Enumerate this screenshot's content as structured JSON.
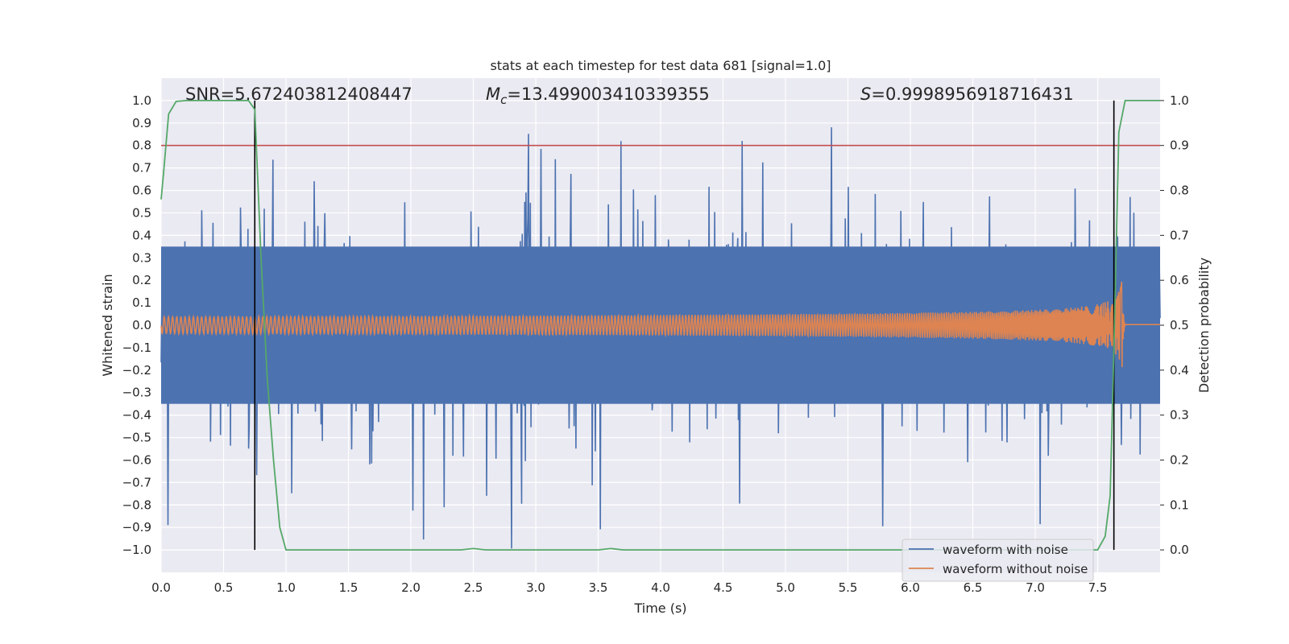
{
  "chart_data": {
    "type": "line",
    "title": "stats at each timestep for test data 681 [signal=1.0]",
    "xlabel": "Time (s)",
    "ylabel_left": "Whitened strain",
    "ylabel_right": "Detection probability",
    "xlim": [
      0.0,
      8.0
    ],
    "ylim_left": [
      -1.1,
      1.1
    ],
    "ylim_right": [
      -0.05,
      1.05
    ],
    "x_ticks": [
      "0.0",
      "0.5",
      "1.0",
      "1.5",
      "2.0",
      "2.5",
      "3.0",
      "3.5",
      "4.0",
      "4.5",
      "5.0",
      "5.5",
      "6.0",
      "6.5",
      "7.0",
      "7.5"
    ],
    "y_ticks_left": [
      "1.0",
      "0.9",
      "0.8",
      "0.7",
      "0.6",
      "0.5",
      "0.4",
      "0.3",
      "0.2",
      "0.1",
      "0.0",
      "-0.1",
      "-0.2",
      "-0.3",
      "-0.4",
      "-0.5",
      "-0.6",
      "-0.7",
      "-0.8",
      "-0.9",
      "-1.0"
    ],
    "y_ticks_right": [
      "1.0",
      "0.9",
      "0.8",
      "0.7",
      "0.6",
      "0.5",
      "0.4",
      "0.3",
      "0.2",
      "0.1",
      "0.0"
    ],
    "grid": true,
    "legend_position": "bottom-right",
    "annotations": {
      "snr": "SNR=5.672403812408447",
      "mc": "=13.499003410339355",
      "s": "=0.9998956918716431"
    },
    "threshold": {
      "value": 0.9,
      "axis": "right",
      "color": "#c44e52"
    },
    "vertical_lines": [
      0.75,
      7.63
    ],
    "series": [
      {
        "name": "waveform with noise",
        "color": "#4c72b0",
        "kind": "noise",
        "axis": "left",
        "x_range": [
          0.0,
          8.0
        ],
        "band": [
          -0.35,
          0.35
        ],
        "peak_max": 0.92,
        "peak_min": -1.0
      },
      {
        "name": "waveform without noise",
        "color": "#dd8452",
        "kind": "chirp",
        "axis": "left",
        "x_range": [
          0.0,
          8.0
        ],
        "merger_time": 7.7,
        "peak_amplitude": 0.25
      },
      {
        "name": "detection probability",
        "color": "#55a868",
        "kind": "line",
        "axis": "right",
        "x": [
          0.0,
          0.02,
          0.06,
          0.12,
          0.2,
          0.5,
          0.7,
          0.75,
          0.8,
          0.85,
          0.9,
          0.95,
          1.0,
          1.5,
          2.0,
          2.4,
          2.5,
          2.6,
          3.0,
          3.5,
          3.6,
          3.7,
          4.0,
          5.0,
          6.0,
          7.0,
          7.5,
          7.56,
          7.6,
          7.63,
          7.67,
          7.72,
          7.78,
          8.0
        ],
        "y": [
          0.78,
          0.84,
          0.97,
          0.998,
          1.0,
          1.0,
          1.0,
          0.98,
          0.65,
          0.38,
          0.2,
          0.05,
          0.0,
          0.0,
          0.0,
          0.0,
          0.003,
          0.0,
          0.0,
          0.0,
          0.003,
          0.0,
          0.0,
          0.0,
          0.0,
          0.0,
          0.0,
          0.03,
          0.12,
          0.45,
          0.93,
          1.0,
          1.0,
          1.0
        ]
      }
    ]
  }
}
